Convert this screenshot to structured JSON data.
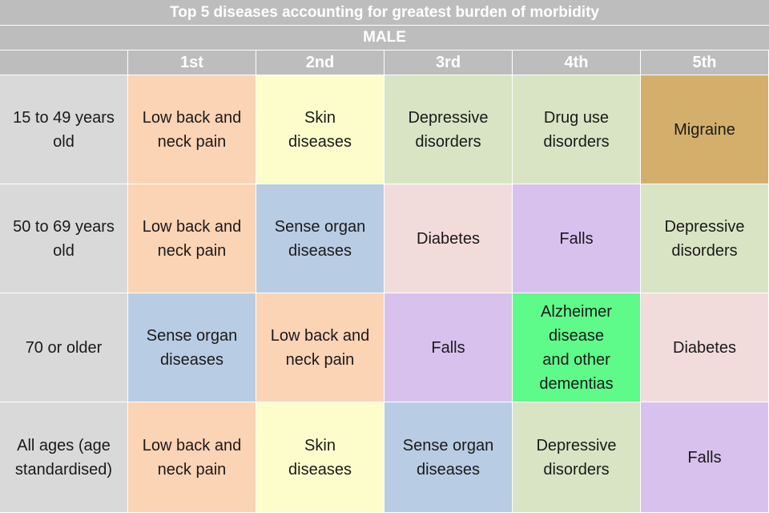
{
  "chart_data": {
    "type": "table",
    "title": "Top 5 diseases accounting for greatest burden of morbidity",
    "subtitle": "MALE",
    "columns": [
      "1st",
      "2nd",
      "3rd",
      "4th",
      "5th"
    ],
    "rows": [
      {
        "label": "15 to 49 years\nold",
        "cells": [
          {
            "text": "Low back and\nneck pain",
            "color": "#fbd3b5"
          },
          {
            "text": "Skin\ndiseases",
            "color": "#fdfdcc"
          },
          {
            "text": "Depressive\ndisorders",
            "color": "#d8e4c4"
          },
          {
            "text": "Drug use\ndisorders",
            "color": "#d8e4c4"
          },
          {
            "text": "Migraine",
            "color": "#d4af6c"
          }
        ]
      },
      {
        "label": "50 to 69 years\nold",
        "cells": [
          {
            "text": "Low back and\nneck pain",
            "color": "#fbd3b5"
          },
          {
            "text": "Sense organ\ndiseases",
            "color": "#b8cce4"
          },
          {
            "text": "Diabetes",
            "color": "#f2dcdb"
          },
          {
            "text": "Falls",
            "color": "#d9c1ee"
          },
          {
            "text": "Depressive\ndisorders",
            "color": "#d8e4c4"
          }
        ]
      },
      {
        "label": "70 or older",
        "cells": [
          {
            "text": "Sense organ\ndiseases",
            "color": "#b8cce4"
          },
          {
            "text": "Low back and\nneck pain",
            "color": "#fbd3b5"
          },
          {
            "text": "Falls",
            "color": "#d9c1ee"
          },
          {
            "text": "Alzheimer disease\nand other\ndementias",
            "color": "#5efa8a"
          },
          {
            "text": "Diabetes",
            "color": "#f2dcdb"
          }
        ]
      },
      {
        "label": "All ages (age\nstandardised)",
        "cells": [
          {
            "text": "Low back and\nneck pain",
            "color": "#fbd3b5"
          },
          {
            "text": "Skin\ndiseases",
            "color": "#fdfdcc"
          },
          {
            "text": "Sense organ\ndiseases",
            "color": "#b8cce4"
          },
          {
            "text": "Depressive\ndisorders",
            "color": "#d8e4c4"
          },
          {
            "text": "Falls",
            "color": "#d9c1ee"
          }
        ]
      }
    ]
  }
}
